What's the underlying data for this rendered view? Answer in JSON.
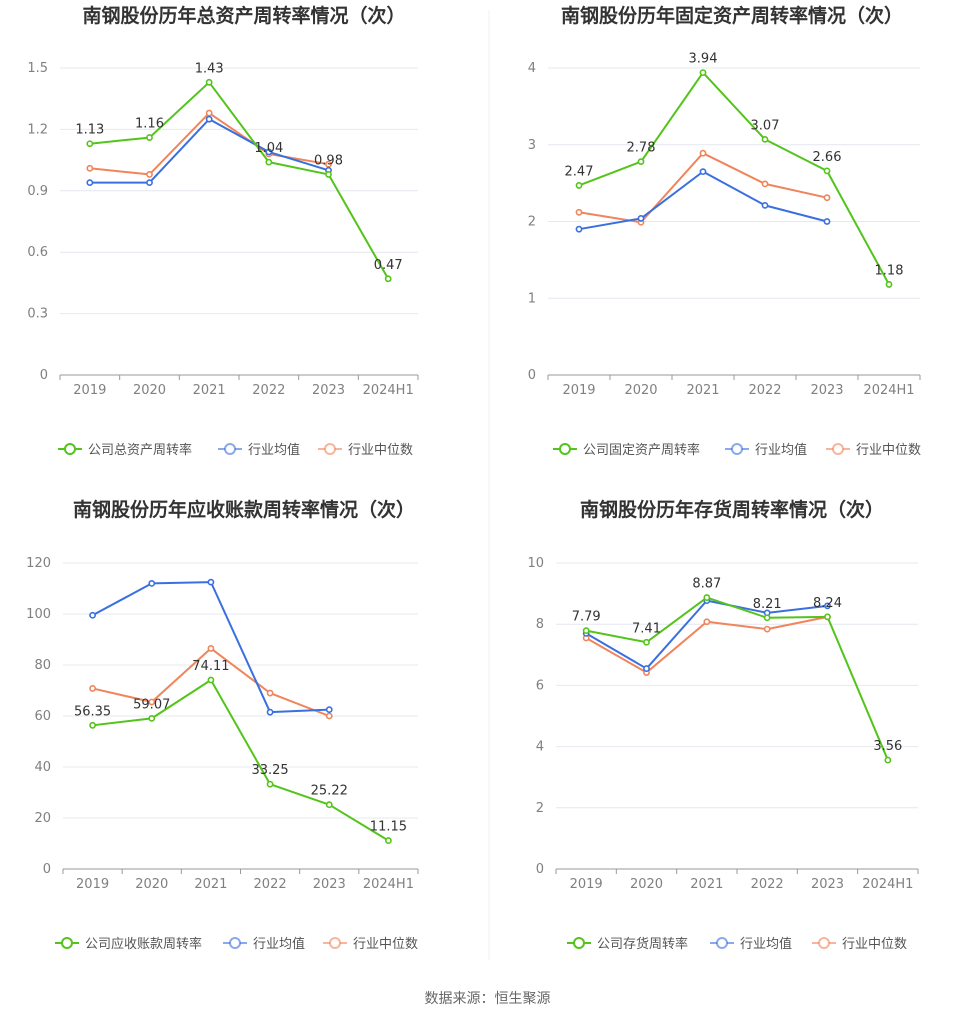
{
  "footer": {
    "source": "数据来源：恒生聚源"
  },
  "colors": {
    "company": "#52c41a",
    "avg": "#3a6fe0",
    "median": "#f0845a",
    "grid": "#e4e8f0",
    "axis": "#999999"
  },
  "chart_data": [
    {
      "type": "line",
      "title": "南钢股份历年总资产周转率情况（次）",
      "categories": [
        "2019",
        "2020",
        "2021",
        "2022",
        "2023",
        "2024H1"
      ],
      "yticks": [
        "0",
        "0.3",
        "0.6",
        "0.9",
        "1.2",
        "1.5"
      ],
      "ylim": [
        0,
        1.5
      ],
      "grid": true,
      "legend": "bottom",
      "series": [
        {
          "name": "公司总资产周转率",
          "key": "company",
          "values": [
            1.13,
            1.16,
            1.43,
            1.04,
            0.98,
            0.47
          ],
          "labels": [
            "1.13",
            "1.16",
            "1.43",
            "1.04",
            "0.98",
            "0.47"
          ]
        },
        {
          "name": "行业均值",
          "key": "avg",
          "values": [
            0.94,
            0.94,
            1.25,
            1.09,
            1.0,
            null
          ]
        },
        {
          "name": "行业中位数",
          "key": "median",
          "values": [
            1.01,
            0.98,
            1.28,
            1.08,
            1.03,
            null
          ]
        }
      ]
    },
    {
      "type": "line",
      "title": "南钢股份历年固定资产周转率情况（次）",
      "categories": [
        "2019",
        "2020",
        "2021",
        "2022",
        "2023",
        "2024H1"
      ],
      "yticks": [
        "0",
        "1",
        "2",
        "3",
        "4"
      ],
      "ylim": [
        0,
        4
      ],
      "grid": true,
      "legend": "bottom",
      "series": [
        {
          "name": "公司固定资产周转率",
          "key": "company",
          "values": [
            2.47,
            2.78,
            3.94,
            3.07,
            2.66,
            1.18
          ],
          "labels": [
            "2.47",
            "2.78",
            "3.94",
            "3.07",
            "2.66",
            "1.18"
          ]
        },
        {
          "name": "行业均值",
          "key": "avg",
          "values": [
            1.9,
            2.04,
            2.65,
            2.21,
            2.0,
            null
          ]
        },
        {
          "name": "行业中位数",
          "key": "median",
          "values": [
            2.12,
            1.99,
            2.89,
            2.49,
            2.31,
            null
          ]
        }
      ]
    },
    {
      "type": "line",
      "title": "南钢股份历年应收账款周转率情况（次）",
      "categories": [
        "2019",
        "2020",
        "2021",
        "2022",
        "2023",
        "2024H1"
      ],
      "yticks": [
        "0",
        "20",
        "40",
        "60",
        "80",
        "100",
        "120"
      ],
      "ylim": [
        0,
        120
      ],
      "grid": true,
      "legend": "bottom",
      "series": [
        {
          "name": "公司应收账款周转率",
          "key": "company",
          "values": [
            56.35,
            59.07,
            74.11,
            33.25,
            25.22,
            11.15
          ],
          "labels": [
            "56.35",
            "59.07",
            "74.11",
            "33.25",
            "25.22",
            "11.15"
          ]
        },
        {
          "name": "行业均值",
          "key": "avg",
          "values": [
            99.5,
            112,
            112.5,
            61.5,
            62.5,
            null
          ]
        },
        {
          "name": "行业中位数",
          "key": "median",
          "values": [
            70.8,
            65.5,
            86.5,
            69.0,
            60.0,
            null
          ]
        }
      ]
    },
    {
      "type": "line",
      "title": "南钢股份历年存货周转率情况（次）",
      "categories": [
        "2019",
        "2020",
        "2021",
        "2022",
        "2023",
        "2024H1"
      ],
      "yticks": [
        "0",
        "2",
        "4",
        "6",
        "8",
        "10"
      ],
      "ylim": [
        0,
        10
      ],
      "grid": true,
      "legend": "bottom",
      "series": [
        {
          "name": "公司存货周转率",
          "key": "company",
          "values": [
            7.79,
            7.41,
            8.87,
            8.21,
            8.24,
            3.56
          ],
          "labels": [
            "7.79",
            "7.41",
            "8.87",
            "8.21",
            "8.24",
            "3.56"
          ]
        },
        {
          "name": "行业均值",
          "key": "avg",
          "values": [
            7.7,
            6.55,
            8.77,
            8.37,
            8.6,
            null
          ]
        },
        {
          "name": "行业中位数",
          "key": "median",
          "values": [
            7.55,
            6.42,
            8.08,
            7.84,
            8.24,
            null
          ]
        }
      ]
    }
  ]
}
